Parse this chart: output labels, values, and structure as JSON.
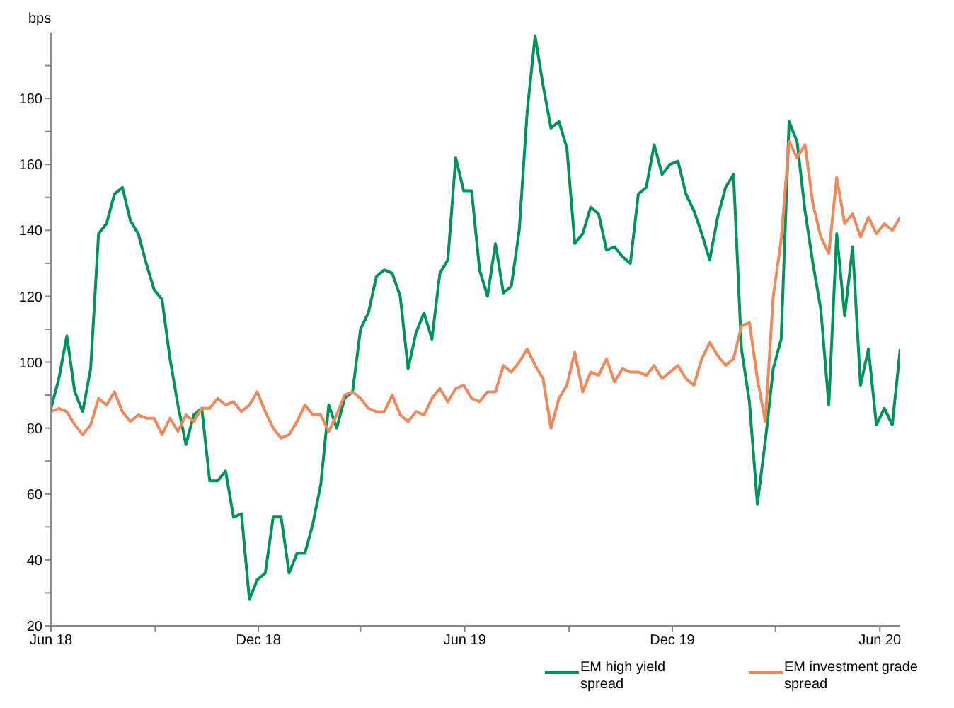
{
  "chart_data": {
    "type": "line",
    "ylabel": "bps",
    "x": [
      "2018-06-01",
      "2018-06-08",
      "2018-06-15",
      "2018-06-22",
      "2018-06-29",
      "2018-07-06",
      "2018-07-13",
      "2018-07-20",
      "2018-07-27",
      "2018-08-03",
      "2018-08-10",
      "2018-08-17",
      "2018-08-24",
      "2018-08-31",
      "2018-09-07",
      "2018-09-14",
      "2018-09-21",
      "2018-09-28",
      "2018-10-05",
      "2018-10-12",
      "2018-10-19",
      "2018-10-26",
      "2018-11-02",
      "2018-11-09",
      "2018-11-16",
      "2018-11-23",
      "2018-11-30",
      "2018-12-07",
      "2018-12-14",
      "2018-12-21",
      "2018-12-28",
      "2019-01-04",
      "2019-01-11",
      "2019-01-18",
      "2019-01-25",
      "2019-02-01",
      "2019-02-08",
      "2019-02-15",
      "2019-02-22",
      "2019-03-01",
      "2019-03-08",
      "2019-03-15",
      "2019-03-22",
      "2019-03-29",
      "2019-04-05",
      "2019-04-12",
      "2019-04-19",
      "2019-04-26",
      "2019-05-03",
      "2019-05-10",
      "2019-05-17",
      "2019-05-24",
      "2019-05-31",
      "2019-06-07",
      "2019-06-14",
      "2019-06-21",
      "2019-06-28",
      "2019-07-05",
      "2019-07-12",
      "2019-07-19",
      "2019-07-26",
      "2019-08-02",
      "2019-08-09",
      "2019-08-16",
      "2019-08-23",
      "2019-08-30",
      "2019-09-06",
      "2019-09-13",
      "2019-09-20",
      "2019-09-27",
      "2019-10-04",
      "2019-10-11",
      "2019-10-18",
      "2019-10-25",
      "2019-11-01",
      "2019-11-08",
      "2019-11-15",
      "2019-11-22",
      "2019-11-29",
      "2019-12-06",
      "2019-12-13",
      "2019-12-20",
      "2019-12-27",
      "2020-01-03",
      "2020-01-10",
      "2020-01-17",
      "2020-01-24",
      "2020-01-31",
      "2020-02-07",
      "2020-02-14",
      "2020-02-21",
      "2020-02-28",
      "2020-03-06",
      "2020-03-13",
      "2020-03-20",
      "2020-03-27",
      "2020-04-03",
      "2020-04-10",
      "2020-04-17",
      "2020-04-24",
      "2020-05-01",
      "2020-05-08",
      "2020-05-15",
      "2020-05-22",
      "2020-05-29",
      "2020-06-05",
      "2020-06-12",
      "2020-06-19"
    ],
    "series": [
      {
        "name": "EM high yield spread",
        "color": "#00935a",
        "values": [
          86,
          95,
          108,
          91,
          85,
          98,
          139,
          142,
          151,
          153,
          143,
          139,
          130,
          122,
          119,
          101,
          87,
          75,
          84,
          86,
          64,
          64,
          67,
          53,
          54,
          28,
          34,
          36,
          53,
          53,
          36,
          42,
          42,
          51,
          63,
          87,
          80,
          89,
          91,
          110,
          115,
          126,
          128,
          127,
          120,
          98,
          109,
          115,
          107,
          127,
          131,
          162,
          152,
          152,
          128,
          120,
          136,
          121,
          123,
          140,
          176,
          199,
          184,
          171,
          173,
          165,
          136,
          139,
          147,
          145,
          134,
          135,
          132,
          130,
          151,
          153,
          166,
          157,
          160,
          161,
          151,
          146,
          139,
          131,
          144,
          153,
          157,
          104,
          88,
          57,
          76,
          98,
          107,
          173,
          167,
          146,
          130,
          116,
          87,
          139,
          114,
          135,
          93,
          104,
          81,
          86,
          81,
          104
        ]
      },
      {
        "name": "EM investment grade spread",
        "color": "#f0885a",
        "values": [
          85,
          86,
          85,
          81,
          78,
          81,
          89,
          87,
          91,
          85,
          82,
          84,
          83,
          83,
          78,
          83,
          79,
          84,
          82,
          86,
          86,
          89,
          87,
          88,
          85,
          87,
          91,
          85,
          80,
          77,
          78,
          82,
          87,
          84,
          84,
          79,
          84,
          90,
          91,
          89,
          86,
          85,
          85,
          90,
          84,
          82,
          85,
          84,
          89,
          92,
          88,
          92,
          93,
          89,
          88,
          91,
          91,
          99,
          97,
          100,
          104,
          99,
          95,
          80,
          89,
          93,
          103,
          91,
          97,
          96,
          101,
          94,
          98,
          97,
          97,
          96,
          99,
          95,
          97,
          99,
          95,
          93,
          101,
          106,
          102,
          99,
          101,
          111,
          112,
          95,
          82,
          120,
          137,
          167,
          162,
          166,
          148,
          138,
          133,
          156,
          142,
          145,
          138,
          144,
          139,
          142,
          140,
          144
        ]
      }
    ],
    "xlim": [
      "2018-06-01",
      "2020-06-19"
    ],
    "xticks": [
      {
        "value": "2018-06-01",
        "label": "Jun 18"
      },
      {
        "value": "2018-09-01",
        "label": null
      },
      {
        "value": "2018-12-01",
        "label": "Dec 18"
      },
      {
        "value": "2019-03-01",
        "label": null
      },
      {
        "value": "2019-06-01",
        "label": "Jun 19"
      },
      {
        "value": "2019-09-01",
        "label": null
      },
      {
        "value": "2019-12-01",
        "label": "Dec 19"
      },
      {
        "value": "2020-03-01",
        "label": null
      },
      {
        "value": "2020-06-01",
        "label": "Jun 20"
      }
    ],
    "ylim": [
      20,
      200
    ],
    "yticks": [
      20,
      {
        "value": 30,
        "label": null
      },
      40,
      {
        "value": 50,
        "label": null
      },
      60,
      {
        "value": 70,
        "label": null
      },
      80,
      {
        "value": 90,
        "label": null
      },
      100,
      {
        "value": 110,
        "label": null
      },
      120,
      {
        "value": 130,
        "label": null
      },
      140,
      {
        "value": 150,
        "label": null
      },
      160,
      {
        "value": 170,
        "label": null
      },
      180,
      {
        "value": 190,
        "label": null
      }
    ],
    "grid": false,
    "legend": "bottom right"
  }
}
